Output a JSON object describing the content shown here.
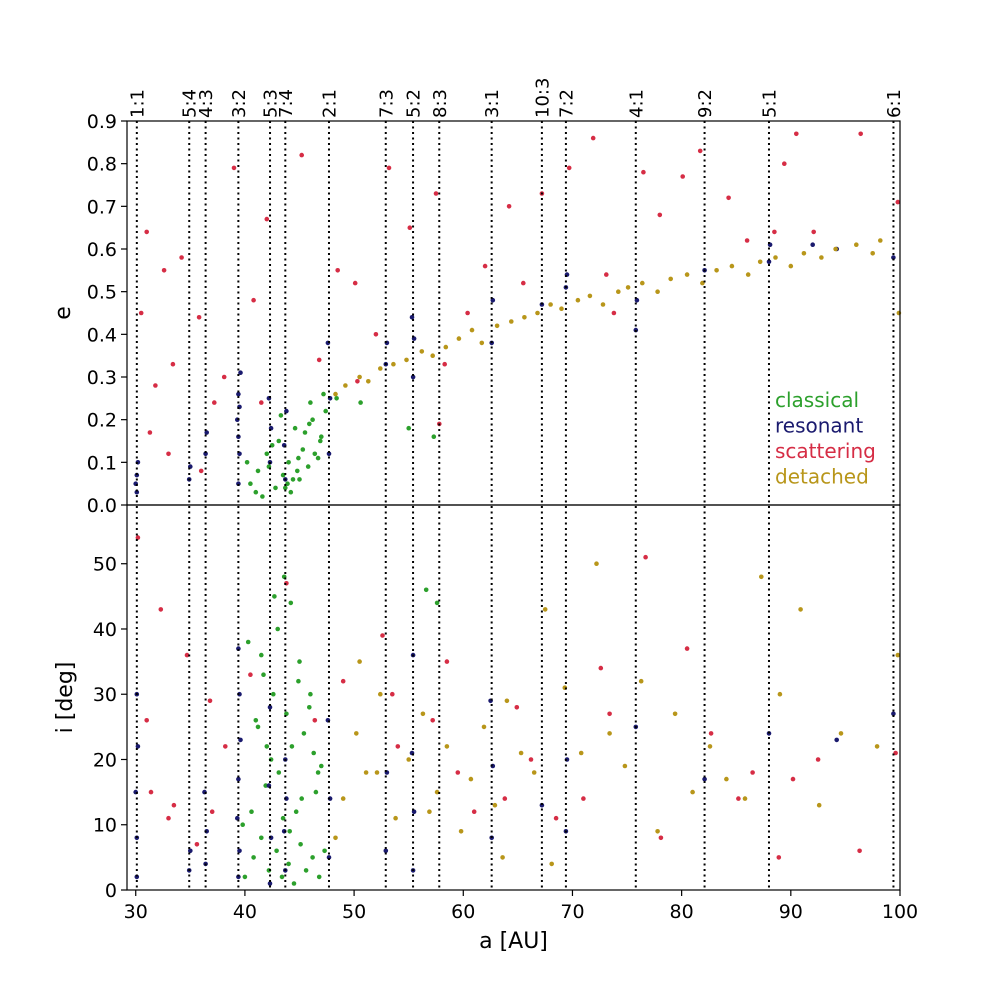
{
  "colors": {
    "classical": "#2ca02c",
    "resonant": "#1a1a6e",
    "scattering": "#d62d45",
    "detached": "#b8961a"
  },
  "chart_data": [
    {
      "type": "scatter",
      "panel": "eccentricity",
      "xlabel": "",
      "ylabel": "e",
      "xlim": [
        29.2,
        100
      ],
      "ylim": [
        0.0,
        0.9
      ],
      "yticks": [
        "0.0",
        "0.1",
        "0.2",
        "0.3",
        "0.4",
        "0.5",
        "0.6",
        "0.7",
        "0.8",
        "0.9"
      ],
      "grid": false,
      "legend_position": "lower-right",
      "legend": [
        "classical",
        "resonant",
        "scattering",
        "detached"
      ],
      "resonances": [
        {
          "label": "1:1",
          "a": 30.1
        },
        {
          "label": "5:4",
          "a": 34.9
        },
        {
          "label": "4:3",
          "a": 36.4
        },
        {
          "label": "3:2",
          "a": 39.4
        },
        {
          "label": "5:3",
          "a": 42.3
        },
        {
          "label": "7:4",
          "a": 43.7
        },
        {
          "label": "2:1",
          "a": 47.7
        },
        {
          "label": "7:3",
          "a": 52.9
        },
        {
          "label": "5:2",
          "a": 55.4
        },
        {
          "label": "8:3",
          "a": 57.8
        },
        {
          "label": "3:1",
          "a": 62.6
        },
        {
          "label": "10:3",
          "a": 67.2
        },
        {
          "label": "7:2",
          "a": 69.4
        },
        {
          "label": "4:1",
          "a": 75.8
        },
        {
          "label": "9:2",
          "a": 82.1
        },
        {
          "label": "5:1",
          "a": 88.0
        },
        {
          "label": "6:1",
          "a": 99.4
        }
      ],
      "series": [
        {
          "name": "classical",
          "x": [
            40.5,
            41.2,
            42.0,
            42.8,
            43.1,
            43.5,
            44.0,
            44.2,
            44.6,
            45.0,
            45.3,
            45.8,
            46.2,
            46.7,
            47.0,
            47.4,
            41.6,
            42.5,
            43.9,
            44.8,
            45.5,
            46.4,
            40.2,
            41.0,
            43.3,
            44.4,
            45.9,
            46.9,
            42.2,
            43.7,
            44.9,
            46.0,
            47.2,
            48.4,
            50.6,
            55.0,
            57.3
          ],
          "y": [
            0.05,
            0.08,
            0.12,
            0.04,
            0.15,
            0.07,
            0.1,
            0.03,
            0.18,
            0.06,
            0.13,
            0.09,
            0.2,
            0.11,
            0.16,
            0.22,
            0.02,
            0.14,
            0.05,
            0.08,
            0.17,
            0.12,
            0.1,
            0.03,
            0.21,
            0.06,
            0.19,
            0.15,
            0.09,
            0.04,
            0.11,
            0.24,
            0.26,
            0.25,
            0.24,
            0.18,
            0.16
          ]
        },
        {
          "name": "resonant",
          "x": [
            30.1,
            30.1,
            30.2,
            30.0,
            34.9,
            35.0,
            36.4,
            36.5,
            39.4,
            39.5,
            39.3,
            39.4,
            39.6,
            39.4,
            39.5,
            42.3,
            42.4,
            42.2,
            43.7,
            43.6,
            43.8,
            47.7,
            47.8,
            47.6,
            52.9,
            53.0,
            55.4,
            55.5,
            55.3,
            62.6,
            62.7,
            67.2,
            69.4,
            69.5,
            75.8,
            75.9,
            82.1,
            88.0,
            88.1,
            99.4,
            94.2,
            92.0
          ],
          "y": [
            0.03,
            0.07,
            0.1,
            0.05,
            0.06,
            0.09,
            0.12,
            0.17,
            0.05,
            0.12,
            0.2,
            0.26,
            0.31,
            0.16,
            0.23,
            0.1,
            0.18,
            0.25,
            0.06,
            0.14,
            0.22,
            0.12,
            0.25,
            0.38,
            0.33,
            0.38,
            0.3,
            0.39,
            0.44,
            0.38,
            0.48,
            0.47,
            0.51,
            0.54,
            0.41,
            0.48,
            0.55,
            0.57,
            0.61,
            0.58,
            0.6,
            0.61
          ]
        },
        {
          "name": "scattering",
          "x": [
            30.5,
            31.0,
            31.8,
            32.6,
            33.4,
            34.2,
            35.8,
            37.2,
            38.1,
            39.0,
            40.8,
            42.0,
            45.2,
            46.8,
            48.5,
            50.1,
            52.0,
            53.2,
            55.1,
            57.5,
            58.3,
            60.4,
            62.0,
            64.2,
            65.5,
            67.2,
            69.7,
            71.9,
            73.1,
            76.5,
            78.0,
            80.1,
            81.7,
            84.3,
            86.0,
            88.5,
            89.4,
            90.5,
            92.1,
            96.4,
            99.8,
            31.3,
            33.0,
            36.0,
            41.5,
            50.3,
            57.8,
            73.8
          ],
          "y": [
            0.45,
            0.64,
            0.28,
            0.55,
            0.33,
            0.58,
            0.44,
            0.24,
            0.3,
            0.79,
            0.48,
            0.67,
            0.82,
            0.34,
            0.55,
            0.52,
            0.4,
            0.79,
            0.65,
            0.73,
            0.33,
            0.45,
            0.56,
            0.7,
            0.52,
            0.73,
            0.79,
            0.86,
            0.54,
            0.78,
            0.68,
            0.77,
            0.83,
            0.72,
            0.62,
            0.64,
            0.8,
            0.87,
            0.64,
            0.87,
            0.71,
            0.17,
            0.12,
            0.08,
            0.24,
            0.29,
            0.19,
            0.45
          ]
        },
        {
          "name": "detached",
          "x": [
            48.3,
            49.2,
            50.5,
            51.3,
            52.4,
            53.6,
            54.8,
            56.2,
            57.2,
            58.4,
            59.6,
            60.8,
            61.7,
            63.1,
            64.4,
            65.6,
            66.8,
            68.0,
            69.0,
            70.5,
            71.6,
            72.8,
            74.2,
            75.1,
            76.4,
            77.8,
            79.0,
            80.5,
            81.9,
            83.2,
            84.6,
            86.1,
            87.2,
            88.6,
            90.0,
            91.2,
            92.8,
            94.1,
            96.0,
            97.5,
            98.2,
            99.9
          ],
          "y": [
            0.26,
            0.28,
            0.3,
            0.29,
            0.32,
            0.33,
            0.34,
            0.36,
            0.35,
            0.37,
            0.39,
            0.41,
            0.38,
            0.42,
            0.43,
            0.44,
            0.45,
            0.47,
            0.46,
            0.48,
            0.49,
            0.47,
            0.5,
            0.51,
            0.52,
            0.5,
            0.53,
            0.54,
            0.52,
            0.55,
            0.56,
            0.54,
            0.57,
            0.58,
            0.56,
            0.59,
            0.58,
            0.6,
            0.61,
            0.59,
            0.62,
            0.45
          ]
        }
      ]
    },
    {
      "type": "scatter",
      "panel": "inclination",
      "xlabel": "a [AU]",
      "ylabel": "i [deg]",
      "xlim": [
        29.2,
        100
      ],
      "ylim": [
        0,
        59
      ],
      "xticks": [
        "30",
        "40",
        "50",
        "60",
        "70",
        "80",
        "90",
        "100"
      ],
      "yticks": [
        "0",
        "10",
        "20",
        "30",
        "40",
        "50"
      ],
      "grid": false,
      "series": [
        {
          "name": "classical",
          "x": [
            40.0,
            40.8,
            41.5,
            42.2,
            42.9,
            43.4,
            44.0,
            44.5,
            45.1,
            45.6,
            46.2,
            46.8,
            47.3,
            41.2,
            42.6,
            43.1,
            44.3,
            45.0,
            45.9,
            46.5,
            40.3,
            41.7,
            42.4,
            43.8,
            44.7,
            45.4,
            46.0,
            47.0,
            40.6,
            41.9,
            43.0,
            44.1,
            45.2,
            46.3,
            39.8,
            41.0,
            42.7,
            43.6,
            44.9,
            46.7,
            41.5,
            42.0,
            43.5,
            44.2,
            56.6,
            57.6
          ],
          "y": [
            2,
            5,
            8,
            3,
            6,
            2,
            4,
            1,
            7,
            3,
            5,
            2,
            6,
            25,
            30,
            18,
            22,
            35,
            28,
            15,
            38,
            33,
            20,
            27,
            12,
            24,
            30,
            19,
            12,
            16,
            40,
            9,
            14,
            21,
            10,
            26,
            45,
            48,
            32,
            18,
            36,
            22,
            11,
            44,
            46,
            44
          ]
        },
        {
          "name": "resonant",
          "x": [
            30.1,
            30.1,
            30.0,
            30.2,
            30.1,
            34.9,
            35.0,
            36.4,
            36.5,
            36.3,
            39.4,
            39.5,
            39.3,
            39.4,
            39.6,
            39.5,
            39.4,
            42.3,
            42.4,
            42.2,
            42.3,
            43.7,
            43.6,
            43.8,
            43.7,
            47.7,
            47.8,
            47.6,
            52.9,
            53.0,
            55.4,
            55.5,
            55.3,
            55.4,
            62.6,
            62.7,
            62.5,
            67.2,
            69.4,
            69.5,
            75.8,
            82.1,
            88.0,
            94.2,
            99.4
          ],
          "y": [
            2,
            8,
            15,
            22,
            30,
            3,
            6,
            4,
            9,
            15,
            2,
            6,
            11,
            17,
            23,
            30,
            37,
            1,
            8,
            16,
            28,
            3,
            9,
            14,
            20,
            5,
            14,
            26,
            6,
            18,
            3,
            12,
            21,
            36,
            8,
            19,
            29,
            13,
            9,
            20,
            25,
            17,
            24,
            23,
            27
          ]
        },
        {
          "name": "scattering",
          "x": [
            30.2,
            31.0,
            32.3,
            33.5,
            34.7,
            35.6,
            37.0,
            38.2,
            40.5,
            43.8,
            46.4,
            49.0,
            52.6,
            54.0,
            57.2,
            59.5,
            61.0,
            63.8,
            66.2,
            68.5,
            71.0,
            73.4,
            76.7,
            78.1,
            80.5,
            82.7,
            85.2,
            86.5,
            88.9,
            90.2,
            92.5,
            96.3,
            99.6,
            31.4,
            33.0,
            36.8,
            53.5,
            58.5,
            64.9,
            72.6
          ],
          "y": [
            54,
            26,
            43,
            13,
            36,
            7,
            12,
            22,
            33,
            47,
            26,
            32,
            39,
            22,
            26,
            18,
            12,
            14,
            20,
            11,
            14,
            27,
            51,
            8,
            37,
            24,
            14,
            18,
            5,
            17,
            20,
            6,
            21,
            15,
            11,
            29,
            30,
            35,
            28,
            34
          ]
        },
        {
          "name": "detached",
          "x": [
            48.3,
            49.0,
            50.2,
            51.1,
            52.4,
            53.8,
            55.0,
            56.3,
            57.6,
            58.5,
            59.8,
            60.7,
            61.9,
            62.9,
            64.0,
            65.3,
            66.5,
            67.5,
            68.1,
            69.3,
            70.8,
            72.2,
            73.4,
            74.8,
            76.3,
            77.8,
            79.4,
            81.0,
            82.6,
            84.1,
            85.8,
            87.3,
            89.0,
            90.9,
            92.6,
            94.6,
            97.9,
            99.8,
            50.5,
            52.1,
            56.9,
            63.6
          ],
          "y": [
            8,
            14,
            24,
            18,
            30,
            11,
            20,
            27,
            15,
            22,
            9,
            17,
            25,
            13,
            29,
            21,
            18,
            43,
            4,
            31,
            21,
            50,
            24,
            19,
            32,
            9,
            27,
            15,
            22,
            17,
            14,
            48,
            30,
            43,
            13,
            24,
            22,
            36,
            35,
            18,
            12,
            5
          ]
        }
      ]
    }
  ]
}
